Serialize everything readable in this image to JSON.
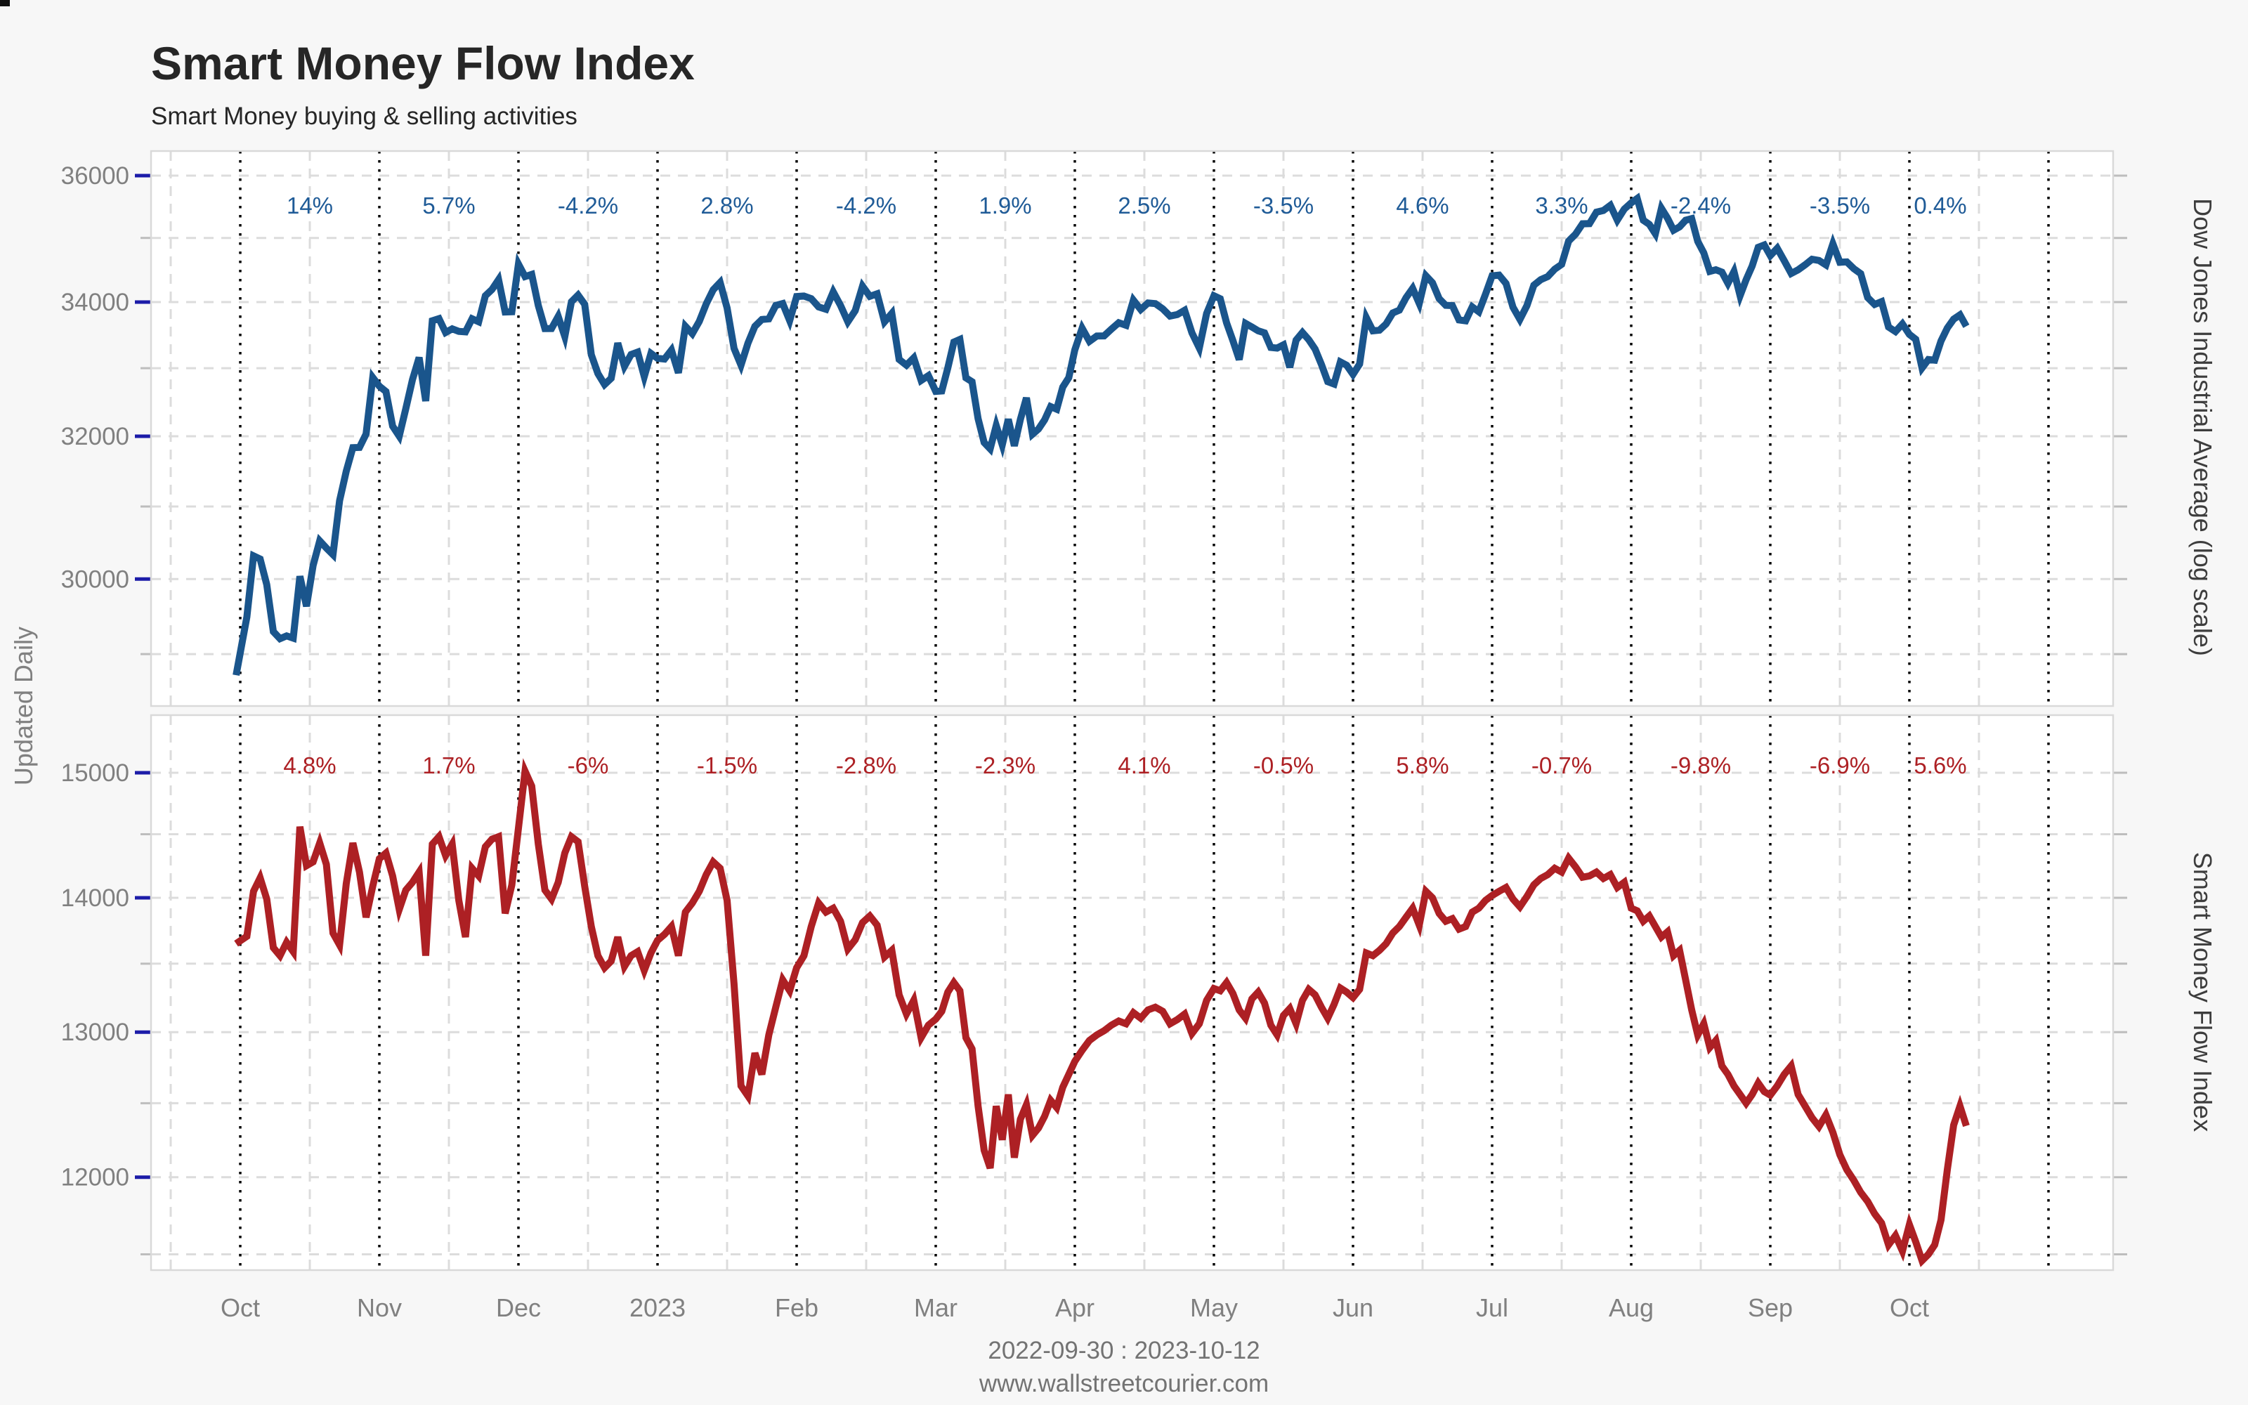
{
  "title": "Smart Money Flow Index",
  "subtitle": "Smart Money buying & selling activities",
  "left_axis_label": "Updated Daily",
  "footer": {
    "date_range": "2022-09-30 : 2023-10-12",
    "website": "www.wallstreetcourier.com"
  },
  "colors": {
    "dow_line": "#1a558c",
    "dow_label_text": "#1f5b97",
    "smfi_line": "#ad2024",
    "smfi_label_text": "#ad2024",
    "gridline": "#dcdcdc",
    "month_boundary_line": "#000000",
    "major_tick": "#1c1ca8",
    "minor_tick": "#bdbdbd",
    "axis_text": "#808080",
    "panel_background": "#ffffff",
    "panel_border": "#d9d9d9",
    "page_background": "#f7f7f7"
  },
  "x_axis": {
    "month_labels": [
      "Oct",
      "Nov",
      "Dec",
      "2023",
      "Feb",
      "Mar",
      "Apr",
      "May",
      "Jun",
      "Jul",
      "Aug",
      "Sep",
      "Oct"
    ]
  },
  "chart_data": [
    {
      "type": "line",
      "panel": "top",
      "axis_label": "Dow Jones Industrial Average (log scale)",
      "scale": "log",
      "ylim": [
        28330,
        36400
      ],
      "y_tick_labels": [
        36000,
        34000,
        32000,
        30000
      ],
      "gridline_values": [
        36000,
        35000,
        34000,
        33000,
        32000,
        31000,
        30000,
        29000
      ],
      "monthly_change_labels": [
        "14%",
        "5.7%",
        "-4.2%",
        "2.8%",
        "-4.2%",
        "1.9%",
        "2.5%",
        "-3.5%",
        "4.6%",
        "3.3%",
        "-2.4%",
        "-3.5%",
        "0.4%"
      ],
      "series": {
        "name": "Dow Jones Industrial Average",
        "start": [
          -0.03,
          28725
        ],
        "months": [
          {
            "n": 21,
            "v": [
              29490,
              30316,
              30273,
              29926,
              29296,
              29202,
              29239,
              29210,
              30038,
              29634,
              30185,
              30523,
              30423,
              30333,
              31082,
              31499,
              31836,
              31839,
              32033,
              32861,
              32732
            ]
          },
          {
            "n": 21,
            "v": [
              32653,
              32147,
              32001,
              32403,
              32827,
              33160,
              32513,
              33715,
              33747,
              33536,
              33592,
              33553,
              33546,
              33745,
              33700,
              34098,
              34194,
              34347,
              33849,
              33852,
              34589
            ]
          },
          {
            "n": 21,
            "v": [
              34395,
              34429,
              33947,
              33596,
              33597,
              33781,
              33476,
              34005,
              34108,
              33966,
              33202,
              32920,
              32757,
              32849,
              33376,
              33027,
              33204,
              33241,
              32875,
              33221,
              33147
            ]
          },
          {
            "n": 20,
            "v": [
              33136,
              33270,
              32930,
              33631,
              33518,
              33704,
              33973,
              34190,
              34303,
              33911,
              33297,
              33045,
              33375,
              33630,
              33734,
              33744,
              33949,
              33978,
              33717,
              34086
            ]
          },
          {
            "n": 19,
            "v": [
              34093,
              34054,
              33926,
              33891,
              34157,
              33949,
              33700,
              33869,
              34246,
              34089,
              34128,
              33697,
              33827,
              33130,
              33045,
              33154,
              32817,
              32889,
              32656
            ]
          },
          {
            "n": 23,
            "v": [
              32662,
              33003,
              33391,
              33431,
              32856,
              32798,
              32255,
              31910,
              31819,
              32155,
              31875,
              32247,
              31862,
              32245,
              32561,
              32030,
              32105,
              32238,
              32432,
              32394,
              32718,
              32859,
              33274
            ]
          },
          {
            "n": 19,
            "v": [
              33601,
              33403,
              33483,
              33485,
              33587,
              33685,
              33646,
              34030,
              33886,
              33987,
              33977,
              33897,
              33786,
              33809,
              33875,
              33531,
              33302,
              33826,
              34098
            ]
          },
          {
            "n": 22,
            "v": [
              34051,
              33684,
              33414,
              33128,
              33674,
              33619,
              33562,
              33531,
              33310,
              33301,
              33349,
              33012,
              33421,
              33536,
              33427,
              33286,
              33056,
              32800,
              32765,
              33093,
              33043,
              32908
            ]
          },
          {
            "n": 21,
            "v": [
              33062,
              33763,
              33562,
              33573,
              33666,
              33834,
              33877,
              34066,
              34212,
              33979,
              34408,
              34299,
              34053,
              33951,
              33947,
              33727,
              33714,
              33926,
              33852,
              34122,
              34407
            ]
          },
          {
            "n": 20,
            "v": [
              34418,
              34288,
              33922,
              33735,
              33944,
              34261,
              34347,
              34395,
              34509,
              34585,
              34951,
              35061,
              35225,
              35228,
              35411,
              35438,
              35520,
              35283,
              35459,
              35559
            ]
          },
          {
            "n": 23,
            "v": [
              35630,
              35282,
              35216,
              35066,
              35473,
              35314,
              35123,
              35176,
              35281,
              35307,
              34946,
              34766,
              34475,
              34501,
              34464,
              34289,
              34473,
              34099,
              34347,
              34560,
              34853,
              34890,
              34722
            ]
          },
          {
            "n": 20,
            "v": [
              34838,
              34642,
              34443,
              34500,
              34577,
              34664,
              34646,
              34576,
              34907,
              34618,
              34624,
              34518,
              34441,
              34070,
              33964,
              34007,
              33619,
              33550,
              33666,
              33508
            ]
          },
          {
            "n": 22,
            "v": [
              33433,
              33002,
              33129,
              33120,
              33408,
              33605,
              33739,
              33805,
              33631
            ]
          }
        ]
      }
    },
    {
      "type": "line",
      "panel": "bottom",
      "axis_label": "Smart Money Flow Index",
      "scale": "log",
      "ylim": [
        11380,
        15470
      ],
      "y_tick_labels": [
        15000,
        14000,
        13000,
        12000
      ],
      "gridline_values": [
        15000,
        14500,
        14000,
        13500,
        13000,
        12500,
        12000,
        11500
      ],
      "monthly_change_labels": [
        "4.8%",
        "1.7%",
        "-6%",
        "-1.5%",
        "-2.8%",
        "-2.3%",
        "4.1%",
        "-0.5%",
        "5.8%",
        "-0.7%",
        "-9.8%",
        "-6.9%",
        "5.6%"
      ],
      "series": {
        "name": "Smart Money Flow Index",
        "start": [
          -0.03,
          13650
        ],
        "months": [
          {
            "n": 21,
            "v": [
              13705,
              14050,
              14155,
              13990,
              13620,
              13560,
              13660,
              13590,
              14560,
              14250,
              14280,
              14430,
              14260,
              13730,
              13640,
              14110,
              14430,
              14200,
              13850,
              14090,
              14305
            ]
          },
          {
            "n": 21,
            "v": [
              14350,
              14170,
              13910,
              14060,
              14120,
              14200,
              13560,
              14420,
              14480,
              14330,
              14420,
              13980,
              13700,
              14230,
              14170,
              14400,
              14460,
              14480,
              13880,
              14100,
              14548
            ]
          },
          {
            "n": 21,
            "v": [
              15013,
              14890,
              14420,
              14060,
              13990,
              14120,
              14350,
              14480,
              14440,
              14090,
              13780,
              13560,
              13470,
              13520,
              13700,
              13480,
              13560,
              13590,
              13450,
              13580,
              13675
            ]
          },
          {
            "n": 20,
            "v": [
              13720,
              13780,
              13560,
              13890,
              13960,
              14050,
              14180,
              14280,
              14230,
              13980,
              13350,
              12620,
              12550,
              12850,
              12700,
              12980,
              13180,
              13380,
              13300,
              13470
            ]
          },
          {
            "n": 19,
            "v": [
              13560,
              13780,
              13960,
              13890,
              13920,
              13820,
              13610,
              13680,
              13810,
              13860,
              13790,
              13550,
              13600,
              13270,
              13130,
              13230,
              12960,
              13050,
              13093
            ]
          },
          {
            "n": 23,
            "v": [
              13150,
              13290,
              13360,
              13300,
              12960,
              12880,
              12480,
              12180,
              12060,
              12480,
              12250,
              12560,
              12130,
              12390,
              12490,
              12280,
              12330,
              12410,
              12520,
              12470,
              12610,
              12700,
              12792
            ]
          },
          {
            "n": 19,
            "v": [
              12870,
              12940,
              12980,
              13010,
              13050,
              13080,
              13060,
              13140,
              13100,
              13160,
              13180,
              13150,
              13060,
              13090,
              13130,
              12990,
              13060,
              13230,
              13316
            ]
          },
          {
            "n": 22,
            "v": [
              13300,
              13360,
              13280,
              13160,
              13100,
              13240,
              13290,
              13210,
              13050,
              12980,
              13120,
              13170,
              13060,
              13230,
              13310,
              13270,
              13180,
              13100,
              13200,
              13320,
              13290,
              13250
            ]
          },
          {
            "n": 21,
            "v": [
              13310,
              13580,
              13560,
              13600,
              13650,
              13730,
              13780,
              13850,
              13920,
              13790,
              14050,
              14000,
              13880,
              13820,
              13840,
              13760,
              13780,
              13890,
              13920,
              13980,
              14018
            ]
          },
          {
            "n": 20,
            "v": [
              14050,
              14080,
              13990,
              13930,
              14010,
              14100,
              14150,
              14180,
              14230,
              14200,
              14310,
              14240,
              14160,
              14170,
              14200,
              14150,
              14180,
              14080,
              14120,
              13920
            ]
          },
          {
            "n": 23,
            "v": [
              13900,
              13820,
              13860,
              13780,
              13700,
              13740,
              13560,
              13600,
              13380,
              13160,
              12980,
              13060,
              12890,
              12940,
              12760,
              12700,
              12620,
              12560,
              12500,
              12560,
              12640,
              12580,
              12556
            ]
          },
          {
            "n": 20,
            "v": [
              12620,
              12700,
              12760,
              12560,
              12480,
              12400,
              12340,
              12420,
              12300,
              12150,
              12050,
              11980,
              11900,
              11840,
              11760,
              11700,
              11560,
              11620,
              11520,
              11690
            ]
          },
          {
            "n": 22,
            "v": [
              11580,
              11460,
              11500,
              11560,
              11720,
              12050,
              12350,
              12480,
              12345
            ]
          }
        ]
      }
    }
  ]
}
